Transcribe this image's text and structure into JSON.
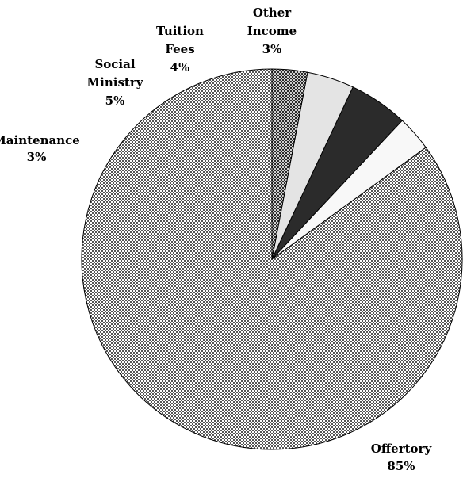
{
  "chart_data": {
    "type": "pie",
    "slices": [
      {
        "name": "Offertory",
        "label_lines": [
          "Offertory",
          "85%"
        ],
        "value": 85,
        "fill": "#9a9a9a",
        "pattern": "checker"
      },
      {
        "name": "Maintenance",
        "label_lines": [
          "Maintenance",
          "3%"
        ],
        "value": 3,
        "fill": "#f8f8f8",
        "pattern": "none"
      },
      {
        "name": "Social Ministry",
        "label_lines": [
          "Social",
          "Ministry",
          "5%"
        ],
        "value": 5,
        "fill": "#2b2b2b",
        "pattern": "none"
      },
      {
        "name": "Tuition Fees",
        "label_lines": [
          "Tuition",
          "Fees",
          "4%"
        ],
        "value": 4,
        "fill": "#e4e4e4",
        "pattern": "none"
      },
      {
        "name": "Other Income",
        "label_lines": [
          "Other",
          "Income",
          "3%"
        ],
        "value": 3,
        "fill": "#6f6f6f",
        "pattern": "checker-dark"
      }
    ],
    "start_angle_deg": 0,
    "direction": "counterclockwise",
    "legend": "none",
    "title": ""
  }
}
